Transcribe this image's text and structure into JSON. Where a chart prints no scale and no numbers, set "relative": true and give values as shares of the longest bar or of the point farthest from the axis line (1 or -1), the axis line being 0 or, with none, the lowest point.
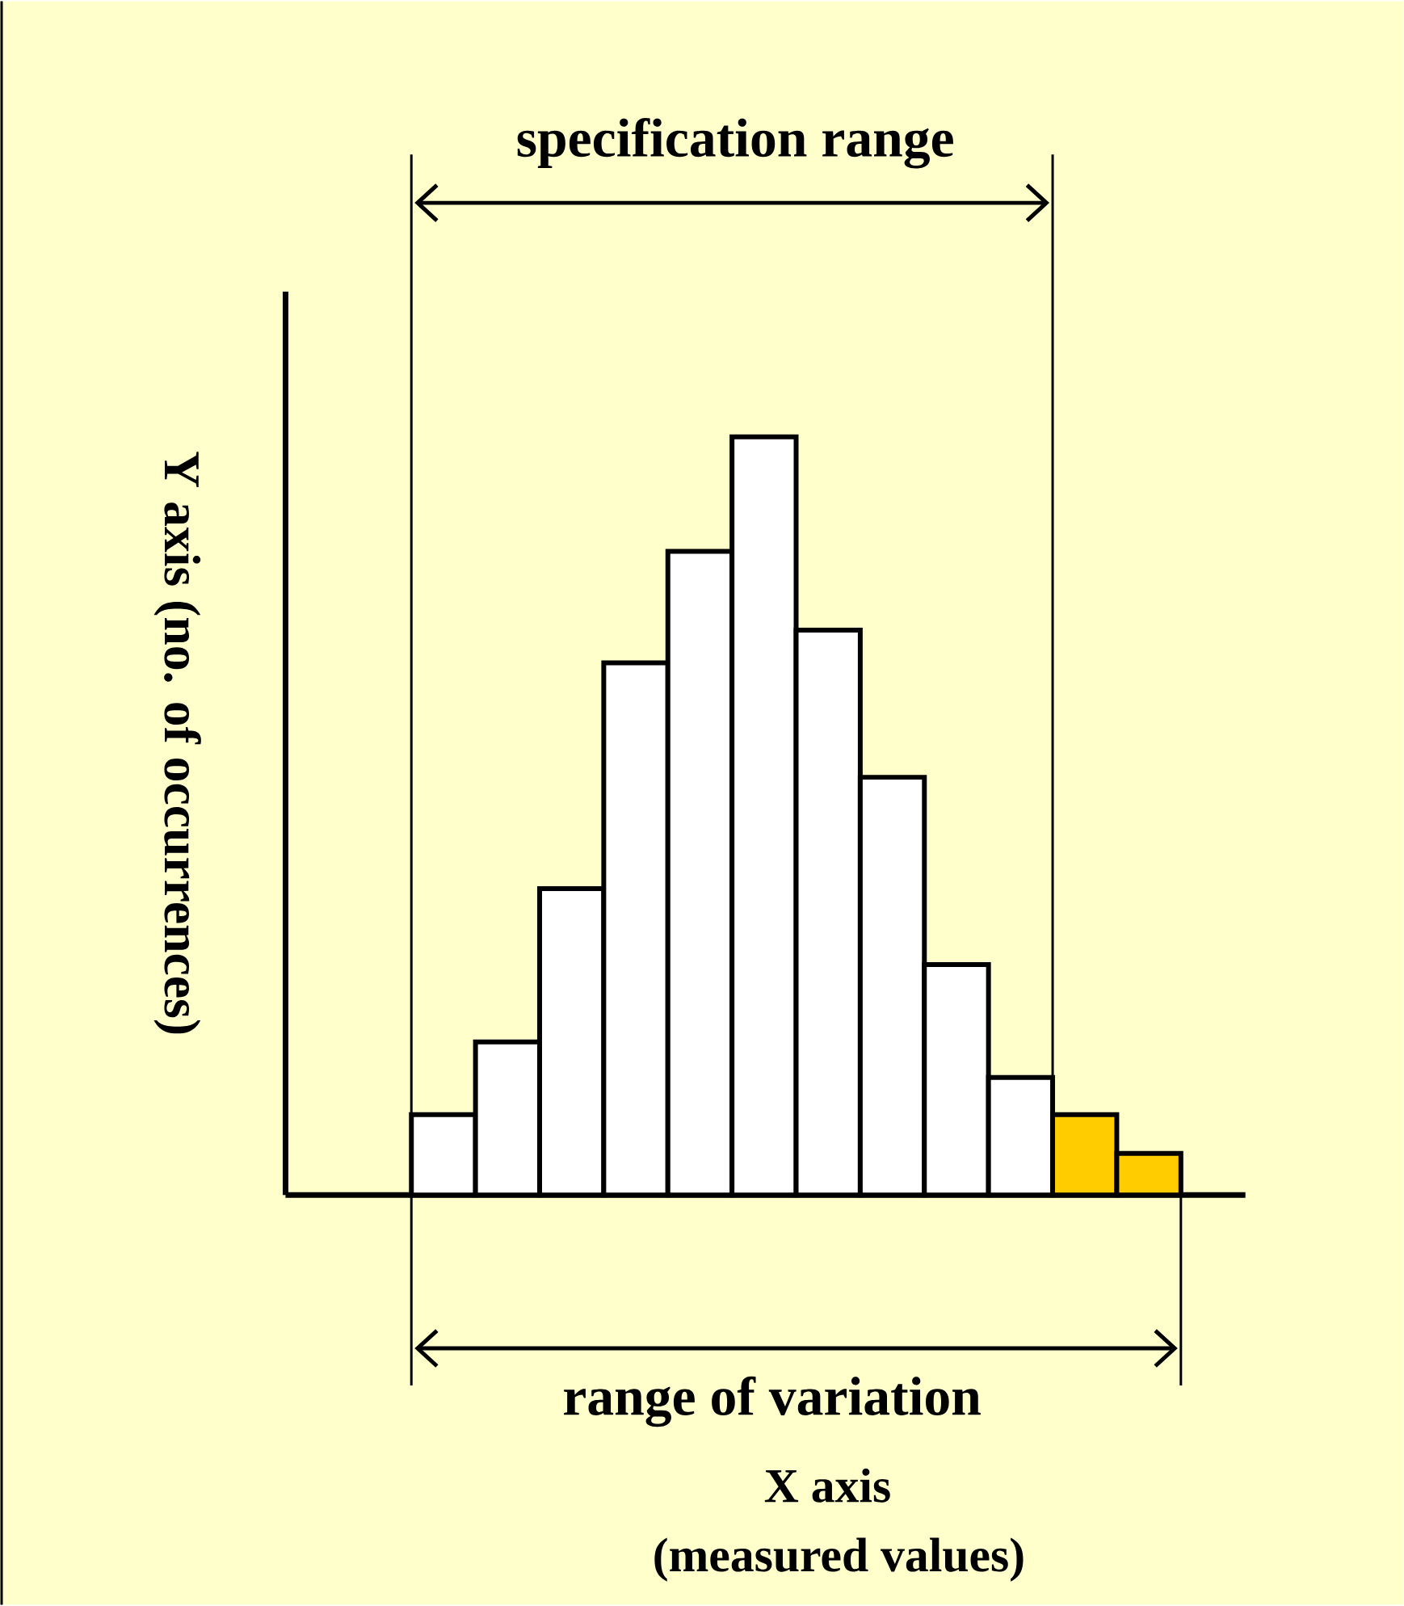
{
  "chart_data": {
    "type": "bar",
    "relative": true,
    "categories": [
      null,
      null,
      null,
      null,
      null,
      null,
      null,
      null,
      null,
      null,
      null,
      null
    ],
    "values": [
      0.106,
      0.202,
      0.404,
      0.702,
      0.849,
      1,
      0.745,
      0.551,
      0.304,
      0.155,
      0.106,
      0.055
    ],
    "colors": [
      "#ffffff",
      "#ffffff",
      "#ffffff",
      "#ffffff",
      "#ffffff",
      "#ffffff",
      "#ffffff",
      "#ffffff",
      "#ffffff",
      "#ffffff",
      "#ffcc00",
      "#ffcc00"
    ],
    "ylabel": "Y axis (no. of occurrences)",
    "annotations": [
      "specification range",
      "range of variation",
      "X axis",
      "(measured values)"
    ]
  }
}
